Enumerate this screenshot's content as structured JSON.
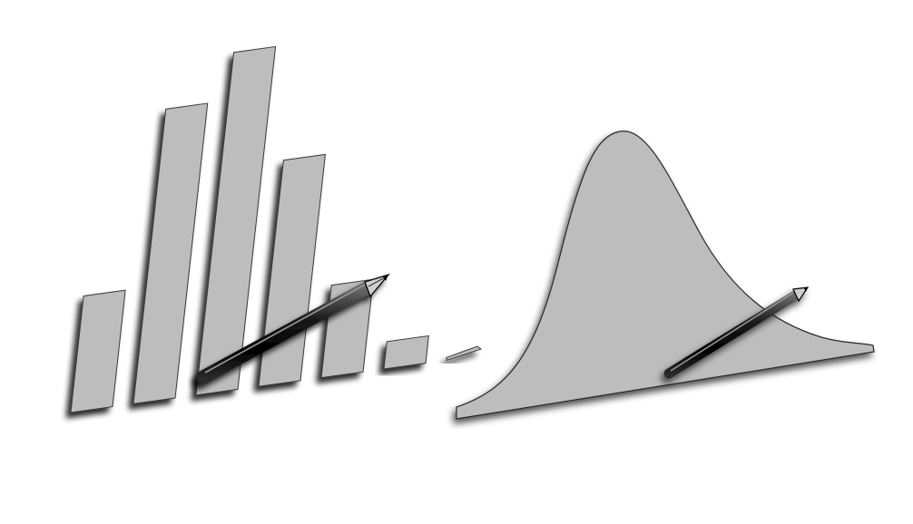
{
  "illustrations": [
    {
      "kind": "histogram-bars-with-pencil",
      "bar_levels": [
        0.34,
        0.86,
        1.0,
        0.66,
        0.27,
        0.08,
        0.02
      ]
    },
    {
      "kind": "bell-curve-with-pencil"
    }
  ],
  "colors": {
    "background": "#ffffff",
    "fill": "#bdbdbd",
    "fill_light": "#c8c8c8",
    "shadow": "#000000",
    "pencil": "#111111",
    "pencil_highlight": "#8a8a8a",
    "pencil_tip": "#d0d0d0"
  }
}
